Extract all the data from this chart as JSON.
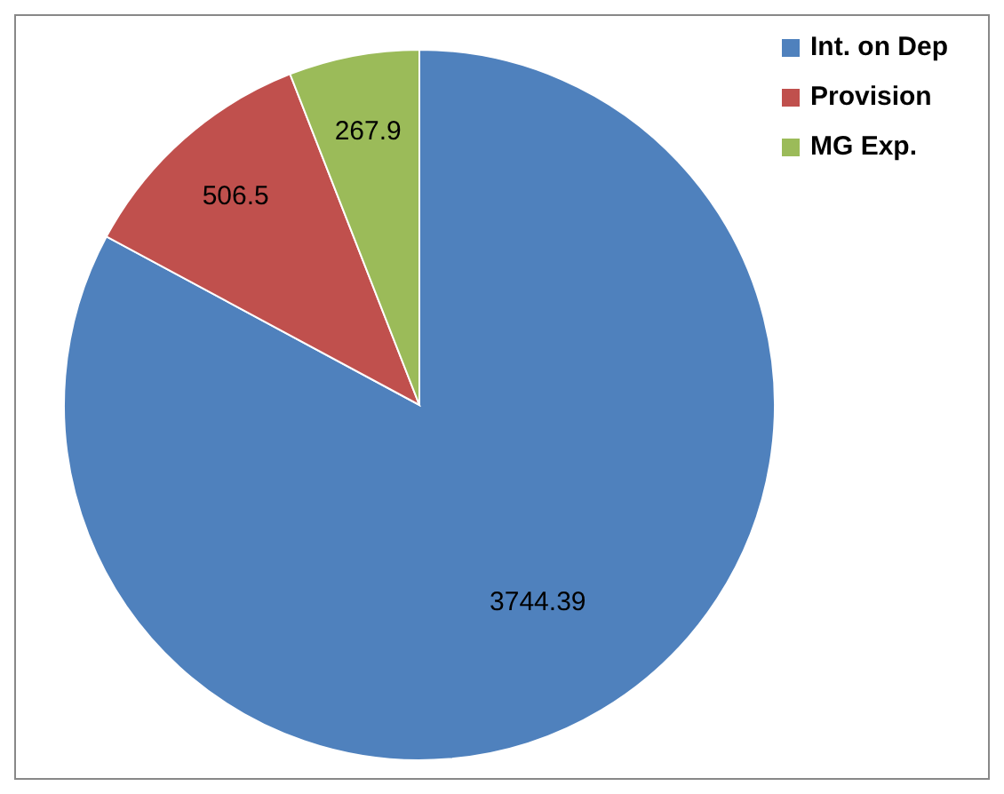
{
  "chart_data": {
    "type": "pie",
    "categories": [
      "Int. on Dep",
      "Provision",
      "MG Exp."
    ],
    "values": [
      3744.39,
      506.5,
      267.9
    ],
    "colors": [
      "#4f81bd",
      "#c0504d",
      "#9bbb59"
    ],
    "data_labels": true,
    "legend": "top right"
  }
}
